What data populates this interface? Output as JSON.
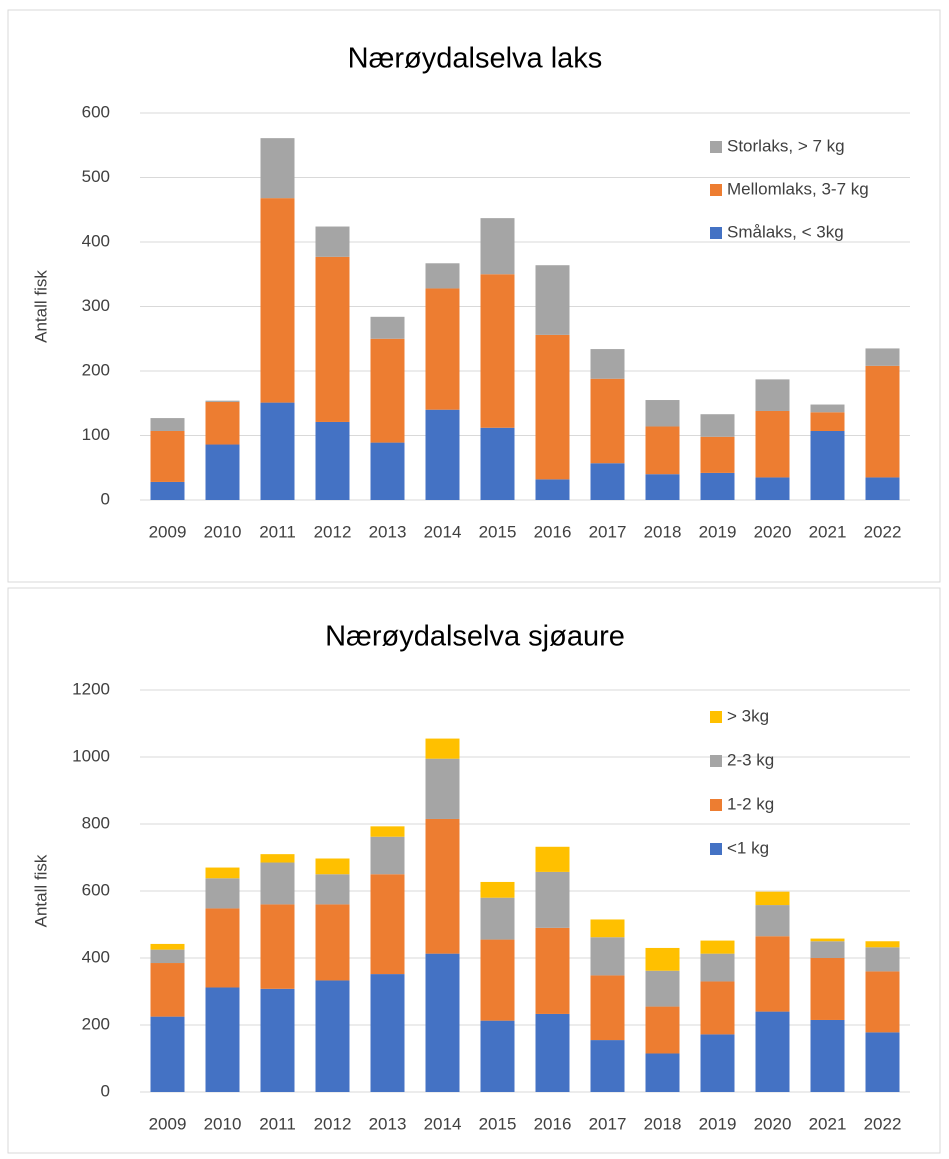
{
  "chart_data": [
    {
      "type": "bar",
      "stacked": true,
      "title": "Nærøydalselva laks",
      "y_label": "Antall fisk",
      "categories": [
        "2009",
        "2010",
        "2011",
        "2012",
        "2013",
        "2014",
        "2015",
        "2016",
        "2017",
        "2018",
        "2019",
        "2020",
        "2021",
        "2022"
      ],
      "series": [
        {
          "name": "Smålaks, < 3kg",
          "color": "#4472c4",
          "values": [
            28,
            86,
            151,
            121,
            89,
            140,
            112,
            32,
            57,
            40,
            42,
            35,
            107,
            35
          ]
        },
        {
          "name": "Mellomlaks, 3-7 kg",
          "color": "#ed7d31",
          "values": [
            79,
            66,
            317,
            256,
            161,
            188,
            238,
            224,
            131,
            74,
            56,
            103,
            29,
            173
          ]
        },
        {
          "name": "Storlaks, > 7 kg",
          "color": "#a5a5a5",
          "values": [
            20,
            2,
            93,
            47,
            34,
            39,
            87,
            108,
            46,
            41,
            35,
            49,
            12,
            27
          ]
        }
      ],
      "ylim": [
        0,
        600
      ],
      "yticks": [
        0,
        100,
        200,
        300,
        400,
        500,
        600
      ],
      "grid": true
    },
    {
      "type": "bar",
      "stacked": true,
      "title": "Nærøydalselva sjøaure",
      "y_label": "Antall fisk",
      "categories": [
        "2009",
        "2010",
        "2011",
        "2012",
        "2013",
        "2014",
        "2015",
        "2016",
        "2017",
        "2018",
        "2019",
        "2020",
        "2021",
        "2022"
      ],
      "series": [
        {
          "name": "<1 kg",
          "color": "#4472c4",
          "values": [
            225,
            312,
            308,
            333,
            352,
            413,
            213,
            233,
            155,
            115,
            172,
            240,
            215,
            178
          ]
        },
        {
          "name": "1-2 kg",
          "color": "#ed7d31",
          "values": [
            160,
            236,
            252,
            227,
            298,
            402,
            242,
            257,
            193,
            140,
            158,
            225,
            185,
            182
          ]
        },
        {
          "name": "2-3 kg",
          "color": "#a5a5a5",
          "values": [
            40,
            90,
            125,
            90,
            112,
            180,
            125,
            167,
            114,
            107,
            83,
            93,
            50,
            72
          ]
        },
        {
          "name": " > 3kg",
          "color": "#ffc000",
          "values": [
            17,
            32,
            25,
            47,
            31,
            60,
            47,
            75,
            53,
            68,
            39,
            40,
            8,
            18
          ]
        }
      ],
      "ylim": [
        0,
        1200
      ],
      "yticks": [
        0,
        200,
        400,
        600,
        800,
        1000,
        1200
      ],
      "grid": true
    }
  ]
}
